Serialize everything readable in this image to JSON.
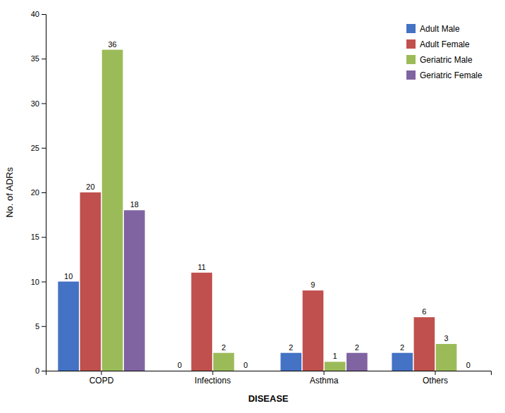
{
  "chart_data": {
    "type": "bar",
    "xlabel": "DISEASE",
    "ylabel": "No. of ADRs",
    "categories": [
      "COPD",
      "Infections",
      "Asthma",
      "Others"
    ],
    "series": [
      {
        "name": "Adult Male",
        "color": "#4472C4",
        "values": [
          10,
          0,
          2,
          2
        ]
      },
      {
        "name": "Adult Female",
        "color": "#C0504D",
        "values": [
          20,
          11,
          9,
          6
        ]
      },
      {
        "name": "Geriatric Male",
        "color": "#9BBB59",
        "values": [
          36,
          2,
          1,
          3
        ]
      },
      {
        "name": "Geriatric Female",
        "color": "#8064A2",
        "values": [
          18,
          0,
          2,
          0
        ]
      }
    ],
    "ylim": [
      0,
      40
    ],
    "yticks": [
      0,
      5,
      10,
      15,
      20,
      25,
      30,
      35,
      40
    ],
    "grid": false,
    "legend": "upper right",
    "data_labels": true
  }
}
